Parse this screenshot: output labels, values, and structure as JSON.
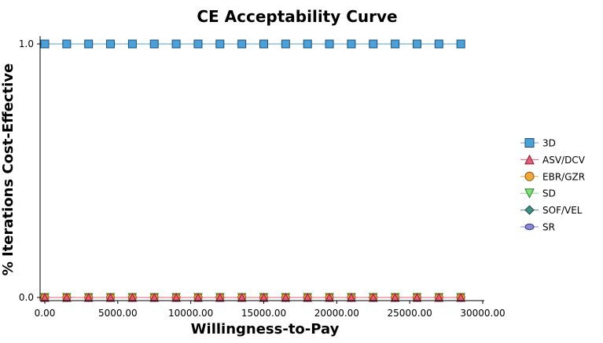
{
  "chart_data": {
    "type": "line",
    "title": "CE Acceptability Curve",
    "xlabel": "Willingness-to-Pay",
    "ylabel": "% Iterations Cost-Effective",
    "xlim": [
      0,
      30000
    ],
    "ylim": [
      0,
      1
    ],
    "x_ticks": [
      "0.00",
      "5000.00",
      "10000.00",
      "15000.00",
      "20000.00",
      "25000.00",
      "30000.00"
    ],
    "y_ticks": [
      "0.0",
      "1.0"
    ],
    "grid": false,
    "legend_position": "right",
    "x": [
      0,
      1500,
      3000,
      4500,
      6000,
      7500,
      9000,
      10500,
      12000,
      13500,
      15000,
      16500,
      18000,
      19500,
      21000,
      22500,
      24000,
      25500,
      27000,
      28500
    ],
    "series": [
      {
        "name": "3D",
        "marker": "square",
        "color": "#4ca0d8",
        "stroke": "#1f4e79",
        "values": [
          1,
          1,
          1,
          1,
          1,
          1,
          1,
          1,
          1,
          1,
          1,
          1,
          1,
          1,
          1,
          1,
          1,
          1,
          1,
          1
        ]
      },
      {
        "name": "ASV/DCV",
        "marker": "triangle-up",
        "color": "#e0607a",
        "stroke": "#8b1a2e",
        "values": [
          0,
          0,
          0,
          0,
          0,
          0,
          0,
          0,
          0,
          0,
          0,
          0,
          0,
          0,
          0,
          0,
          0,
          0,
          0,
          0
        ]
      },
      {
        "name": "EBR/GZR",
        "marker": "circle",
        "color": "#f2a93b",
        "stroke": "#8a5a10",
        "values": [
          0,
          0,
          0,
          0,
          0,
          0,
          0,
          0,
          0,
          0,
          0,
          0,
          0,
          0,
          0,
          0,
          0,
          0,
          0,
          0
        ]
      },
      {
        "name": "SD",
        "marker": "triangle-down",
        "color": "#7fe07a",
        "stroke": "#2e7a2a",
        "values": [
          0,
          0,
          0,
          0,
          0,
          0,
          0,
          0,
          0,
          0,
          0,
          0,
          0,
          0,
          0,
          0,
          0,
          0,
          0,
          0
        ]
      },
      {
        "name": "SOF/VEL",
        "marker": "diamond",
        "color": "#3f8f86",
        "stroke": "#1d4a44",
        "values": [
          0,
          0,
          0,
          0,
          0,
          0,
          0,
          0,
          0,
          0,
          0,
          0,
          0,
          0,
          0,
          0,
          0,
          0,
          0,
          0
        ]
      },
      {
        "name": "SR",
        "marker": "ellipse",
        "color": "#8a86d8",
        "stroke": "#3a3680",
        "values": [
          0,
          0,
          0,
          0,
          0,
          0,
          0,
          0,
          0,
          0,
          0,
          0,
          0,
          0,
          0,
          0,
          0,
          0,
          0,
          0
        ]
      }
    ]
  }
}
